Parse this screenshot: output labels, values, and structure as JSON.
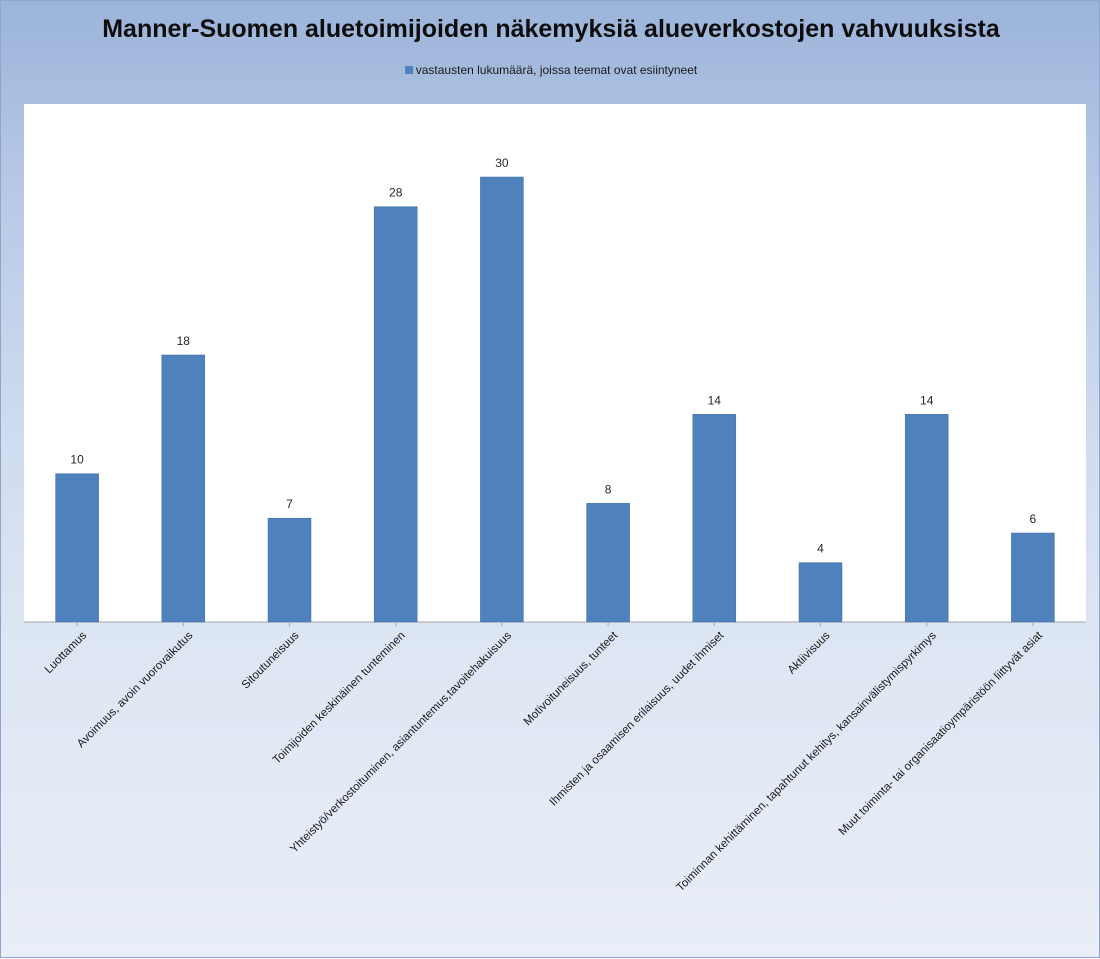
{
  "chart_data": {
    "type": "bar",
    "title": "Manner-Suomen aluetoimijoiden näkemyksiä alueverkostojen vahvuuksista",
    "categories": [
      "Luottamus",
      "Avoimuus, avoin vuorovaikutus",
      "Sitoutuneisuus",
      "Toimijoiden keskinäinen tunteminen",
      "Yhteistyö/verkostoituminen, asiantuntemus,tavoitehakuisuus",
      "Motivoituneisuus, tunteet",
      "Ihmisten ja osaamisen erilaisuus, uudet ihmiset",
      "Aktiivisuus",
      "Toiminnan kehittäminen, tapahtunut kehitys, kansainvälistymispyrkimys",
      "Muut toiminta- tai organisaatioympäristöön liittyvät asiat"
    ],
    "series": [
      {
        "name": "vastausten lukumäärä, joissa teemat ovat esiintyneet",
        "values": [
          10,
          18,
          7,
          28,
          30,
          8,
          14,
          4,
          14,
          6
        ]
      }
    ],
    "ylim": [
      0,
      30
    ],
    "grid": false,
    "legend_position": "top",
    "data_labels": true,
    "colors": {
      "bar": "#4f81bd",
      "bar_edge": "#3f6ea6",
      "plot_background": "#ffffff",
      "axis": "#a6a6a6"
    }
  }
}
